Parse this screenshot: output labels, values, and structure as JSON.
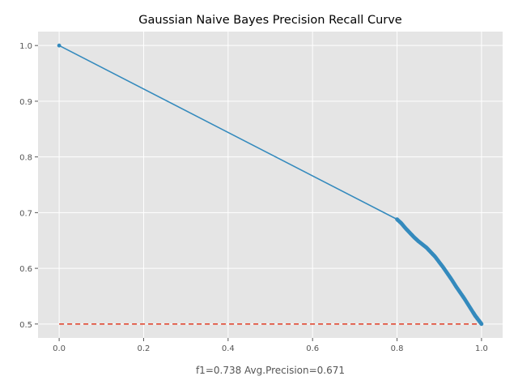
{
  "chart_data": {
    "type": "line",
    "title": "Gaussian Naive Bayes Precision Recall Curve",
    "xlabel": "f1=0.738  Avg.Precision=0.671",
    "ylabel": "",
    "xlim": [
      -0.05,
      1.05
    ],
    "ylim": [
      0.475,
      1.025
    ],
    "xticks": [
      0.0,
      0.2,
      0.4,
      0.6,
      0.8,
      1.0
    ],
    "xtick_labels": [
      "0.0",
      "0.2",
      "0.4",
      "0.6",
      "0.8",
      "1.0"
    ],
    "yticks": [
      0.5,
      0.6,
      0.7,
      0.8,
      0.9,
      1.0
    ],
    "ytick_labels": [
      "0.5",
      "0.6",
      "0.7",
      "0.8",
      "0.9",
      "1.0"
    ],
    "grid": true,
    "legend": "none",
    "series": [
      {
        "kind": "solid-with-markers",
        "color": "#348ABD",
        "x": [
          0.0,
          0.8,
          0.81,
          0.82,
          0.83,
          0.84,
          0.85,
          0.86,
          0.87,
          0.88,
          0.89,
          0.9,
          0.91,
          0.92,
          0.93,
          0.94,
          0.95,
          0.96,
          0.97,
          0.98,
          0.985,
          0.99,
          0.995,
          1.0
        ],
        "y": [
          1.0,
          0.688,
          0.681,
          0.672,
          0.664,
          0.656,
          0.649,
          0.643,
          0.637,
          0.629,
          0.621,
          0.611,
          0.601,
          0.59,
          0.579,
          0.567,
          0.556,
          0.545,
          0.533,
          0.521,
          0.515,
          0.51,
          0.505,
          0.5
        ]
      },
      {
        "kind": "dashed-baseline",
        "color": "#E24A33",
        "x": [
          0.0,
          1.0
        ],
        "y": [
          0.5,
          0.5
        ]
      }
    ]
  }
}
